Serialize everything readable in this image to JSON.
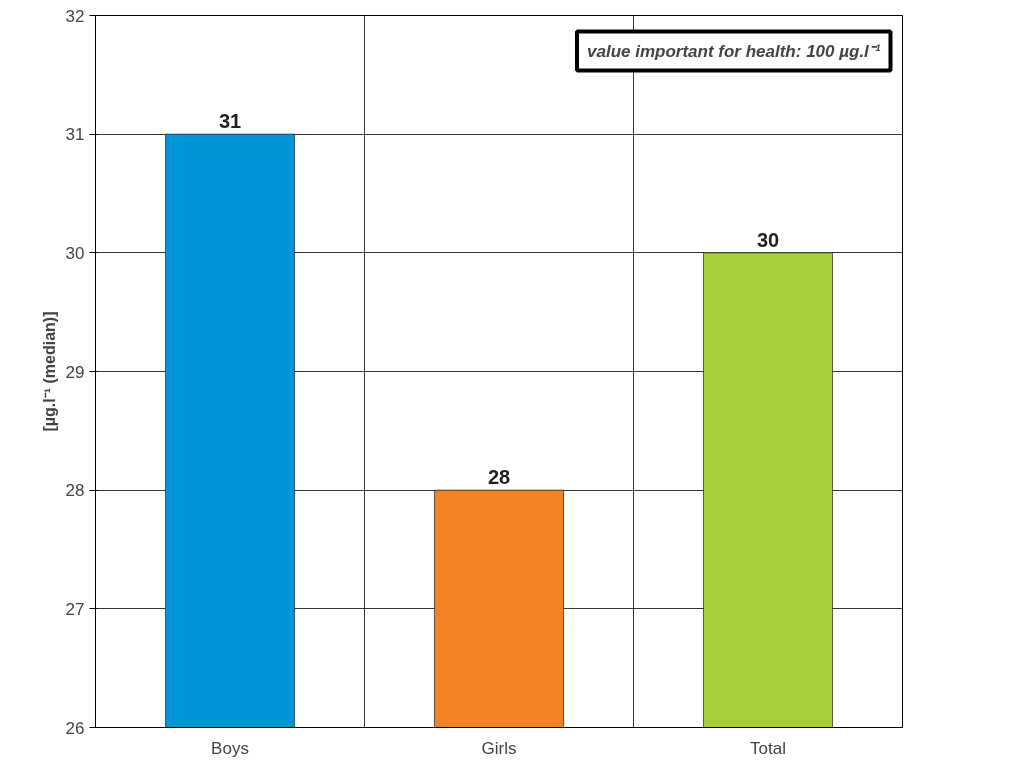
{
  "chart_data": {
    "type": "bar",
    "ylabel": "[µg.l⁻¹ (median)]",
    "categories": [
      "Boys",
      "Girls",
      "Total"
    ],
    "values": [
      31,
      28,
      30
    ],
    "colors": [
      "#0096d6",
      "#f28224",
      "#a6ce39"
    ],
    "ylim": [
      26,
      32
    ],
    "yticks": [
      26,
      27,
      28,
      29,
      30,
      31,
      32
    ],
    "grid": true,
    "data_labels": true,
    "annotations": [
      "value important for health: 100 µg.l⁻¹"
    ]
  }
}
